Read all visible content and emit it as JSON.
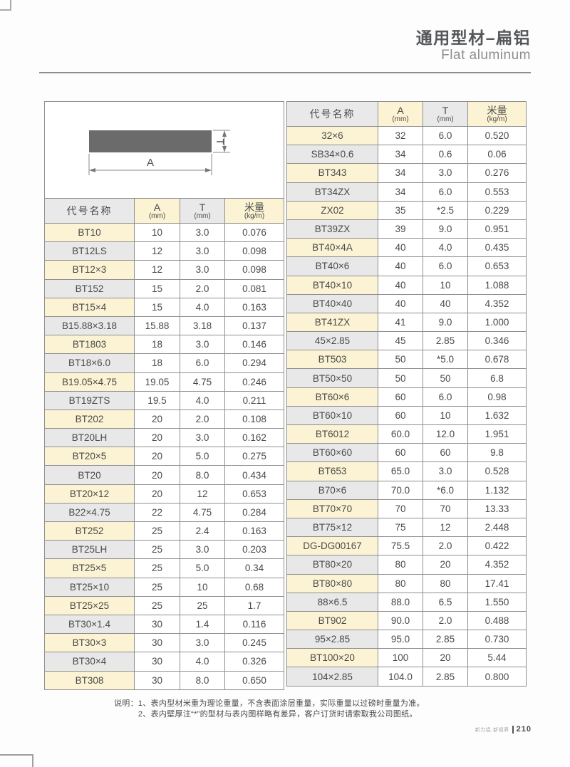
{
  "page": {
    "title_cn": "通用型材–扁铝",
    "title_en": "Flat aluminum",
    "footer_brand": "新力铝·新视界",
    "footer_page": "210"
  },
  "notes": {
    "label": "说明：",
    "lines": [
      "1、表内型材米重为理论重量，不含表面涂层重量，实际重量以过磅时重量为准。",
      "2、表内壁厚注“*”的型材与表内图样略有差异，客户订货时请索取我公司图纸。"
    ]
  },
  "diagram": {
    "width_label": "A",
    "thickness_label": "T"
  },
  "table_headers": {
    "name": "代号名称",
    "a": "A",
    "a_unit": "(mm)",
    "t": "T",
    "t_unit": "(mm)",
    "m": "米量",
    "m_unit": "(kg/m)"
  },
  "left_table": {
    "rows": [
      [
        "BT10",
        "10",
        "3.0",
        "0.076"
      ],
      [
        "BT12LS",
        "12",
        "3.0",
        "0.098"
      ],
      [
        "BT12×3",
        "12",
        "3.0",
        "0.098"
      ],
      [
        "BT152",
        "15",
        "2.0",
        "0.081"
      ],
      [
        "BT15×4",
        "15",
        "4.0",
        "0.163"
      ],
      [
        "B15.88×3.18",
        "15.88",
        "3.18",
        "0.137"
      ],
      [
        "BT1803",
        "18",
        "3.0",
        "0.146"
      ],
      [
        "BT18×6.0",
        "18",
        "6.0",
        "0.294"
      ],
      [
        "B19.05×4.75",
        "19.05",
        "4.75",
        "0.246"
      ],
      [
        "BT19ZTS",
        "19.5",
        "4.0",
        "0.211"
      ],
      [
        "BT202",
        "20",
        "2.0",
        "0.108"
      ],
      [
        "BT20LH",
        "20",
        "3.0",
        "0.162"
      ],
      [
        "BT20×5",
        "20",
        "5.0",
        "0.275"
      ],
      [
        "BT20",
        "20",
        "8.0",
        "0.434"
      ],
      [
        "BT20×12",
        "20",
        "12",
        "0.653"
      ],
      [
        "B22×4.75",
        "22",
        "4.75",
        "0.284"
      ],
      [
        "BT252",
        "25",
        "2.4",
        "0.163"
      ],
      [
        "BT25LH",
        "25",
        "3.0",
        "0.203"
      ],
      [
        "BT25×5",
        "25",
        "5.0",
        "0.34"
      ],
      [
        "BT25×10",
        "25",
        "10",
        "0.68"
      ],
      [
        "BT25×25",
        "25",
        "25",
        "1.7"
      ],
      [
        "BT30×1.4",
        "30",
        "1.4",
        "0.116"
      ],
      [
        "BT30×3",
        "30",
        "3.0",
        "0.245"
      ],
      [
        "BT30×4",
        "30",
        "4.0",
        "0.326"
      ],
      [
        "BT308",
        "30",
        "8.0",
        "0.650"
      ]
    ]
  },
  "right_table": {
    "rows": [
      [
        "32×6",
        "32",
        "6.0",
        "0.520"
      ],
      [
        "SB34×0.6",
        "34",
        "0.6",
        "0.06"
      ],
      [
        "BT343",
        "34",
        "3.0",
        "0.276"
      ],
      [
        "BT34ZX",
        "34",
        "6.0",
        "0.553"
      ],
      [
        "ZX02",
        "35",
        "*2.5",
        "0.229"
      ],
      [
        "BT39ZX",
        "39",
        "9.0",
        "0.951"
      ],
      [
        "BT40×4A",
        "40",
        "4.0",
        "0.435"
      ],
      [
        "BT40×6",
        "40",
        "6.0",
        "0.653"
      ],
      [
        "BT40×10",
        "40",
        "10",
        "1.088"
      ],
      [
        "BT40×40",
        "40",
        "40",
        "4.352"
      ],
      [
        "BT41ZX",
        "41",
        "9.0",
        "1.000"
      ],
      [
        "45×2.85",
        "45",
        "2.85",
        "0.346"
      ],
      [
        "BT503",
        "50",
        "*5.0",
        "0.678"
      ],
      [
        "BT50×50",
        "50",
        "50",
        "6.8"
      ],
      [
        "BT60×6",
        "60",
        "6.0",
        "0.98"
      ],
      [
        "BT60×10",
        "60",
        "10",
        "1.632"
      ],
      [
        "BT6012",
        "60.0",
        "12.0",
        "1.951"
      ],
      [
        "BT60×60",
        "60",
        "60",
        "9.8"
      ],
      [
        "BT653",
        "65.0",
        "3.0",
        "0.528"
      ],
      [
        "B70×6",
        "70.0",
        "*6.0",
        "1.132"
      ],
      [
        "BT70×70",
        "70",
        "70",
        "13.33"
      ],
      [
        "BT75×12",
        "75",
        "12",
        "2.448"
      ],
      [
        "DG-DG00167",
        "75.5",
        "2.0",
        "0.422"
      ],
      [
        "BT80×20",
        "80",
        "20",
        "4.352"
      ],
      [
        "BT80×80",
        "80",
        "80",
        "17.41"
      ],
      [
        "88×6.5",
        "88.0",
        "6.5",
        "1.550"
      ],
      [
        "BT902",
        "90.0",
        "2.0",
        "0.488"
      ],
      [
        "95×2.85",
        "95.0",
        "2.85",
        "0.730"
      ],
      [
        "BT100×20",
        "100",
        "20",
        "5.44"
      ],
      [
        "104×2.85",
        "104.0",
        "2.85",
        "0.800"
      ]
    ]
  },
  "colors": {
    "row_yellow": "#fbf3d3",
    "row_gray": "#e8e8e8",
    "header_yellow": "#fbf3d3",
    "header_gray": "#e9e9e9",
    "border": "#8f8f8f",
    "profile_fill": "#6b6b6b"
  }
}
